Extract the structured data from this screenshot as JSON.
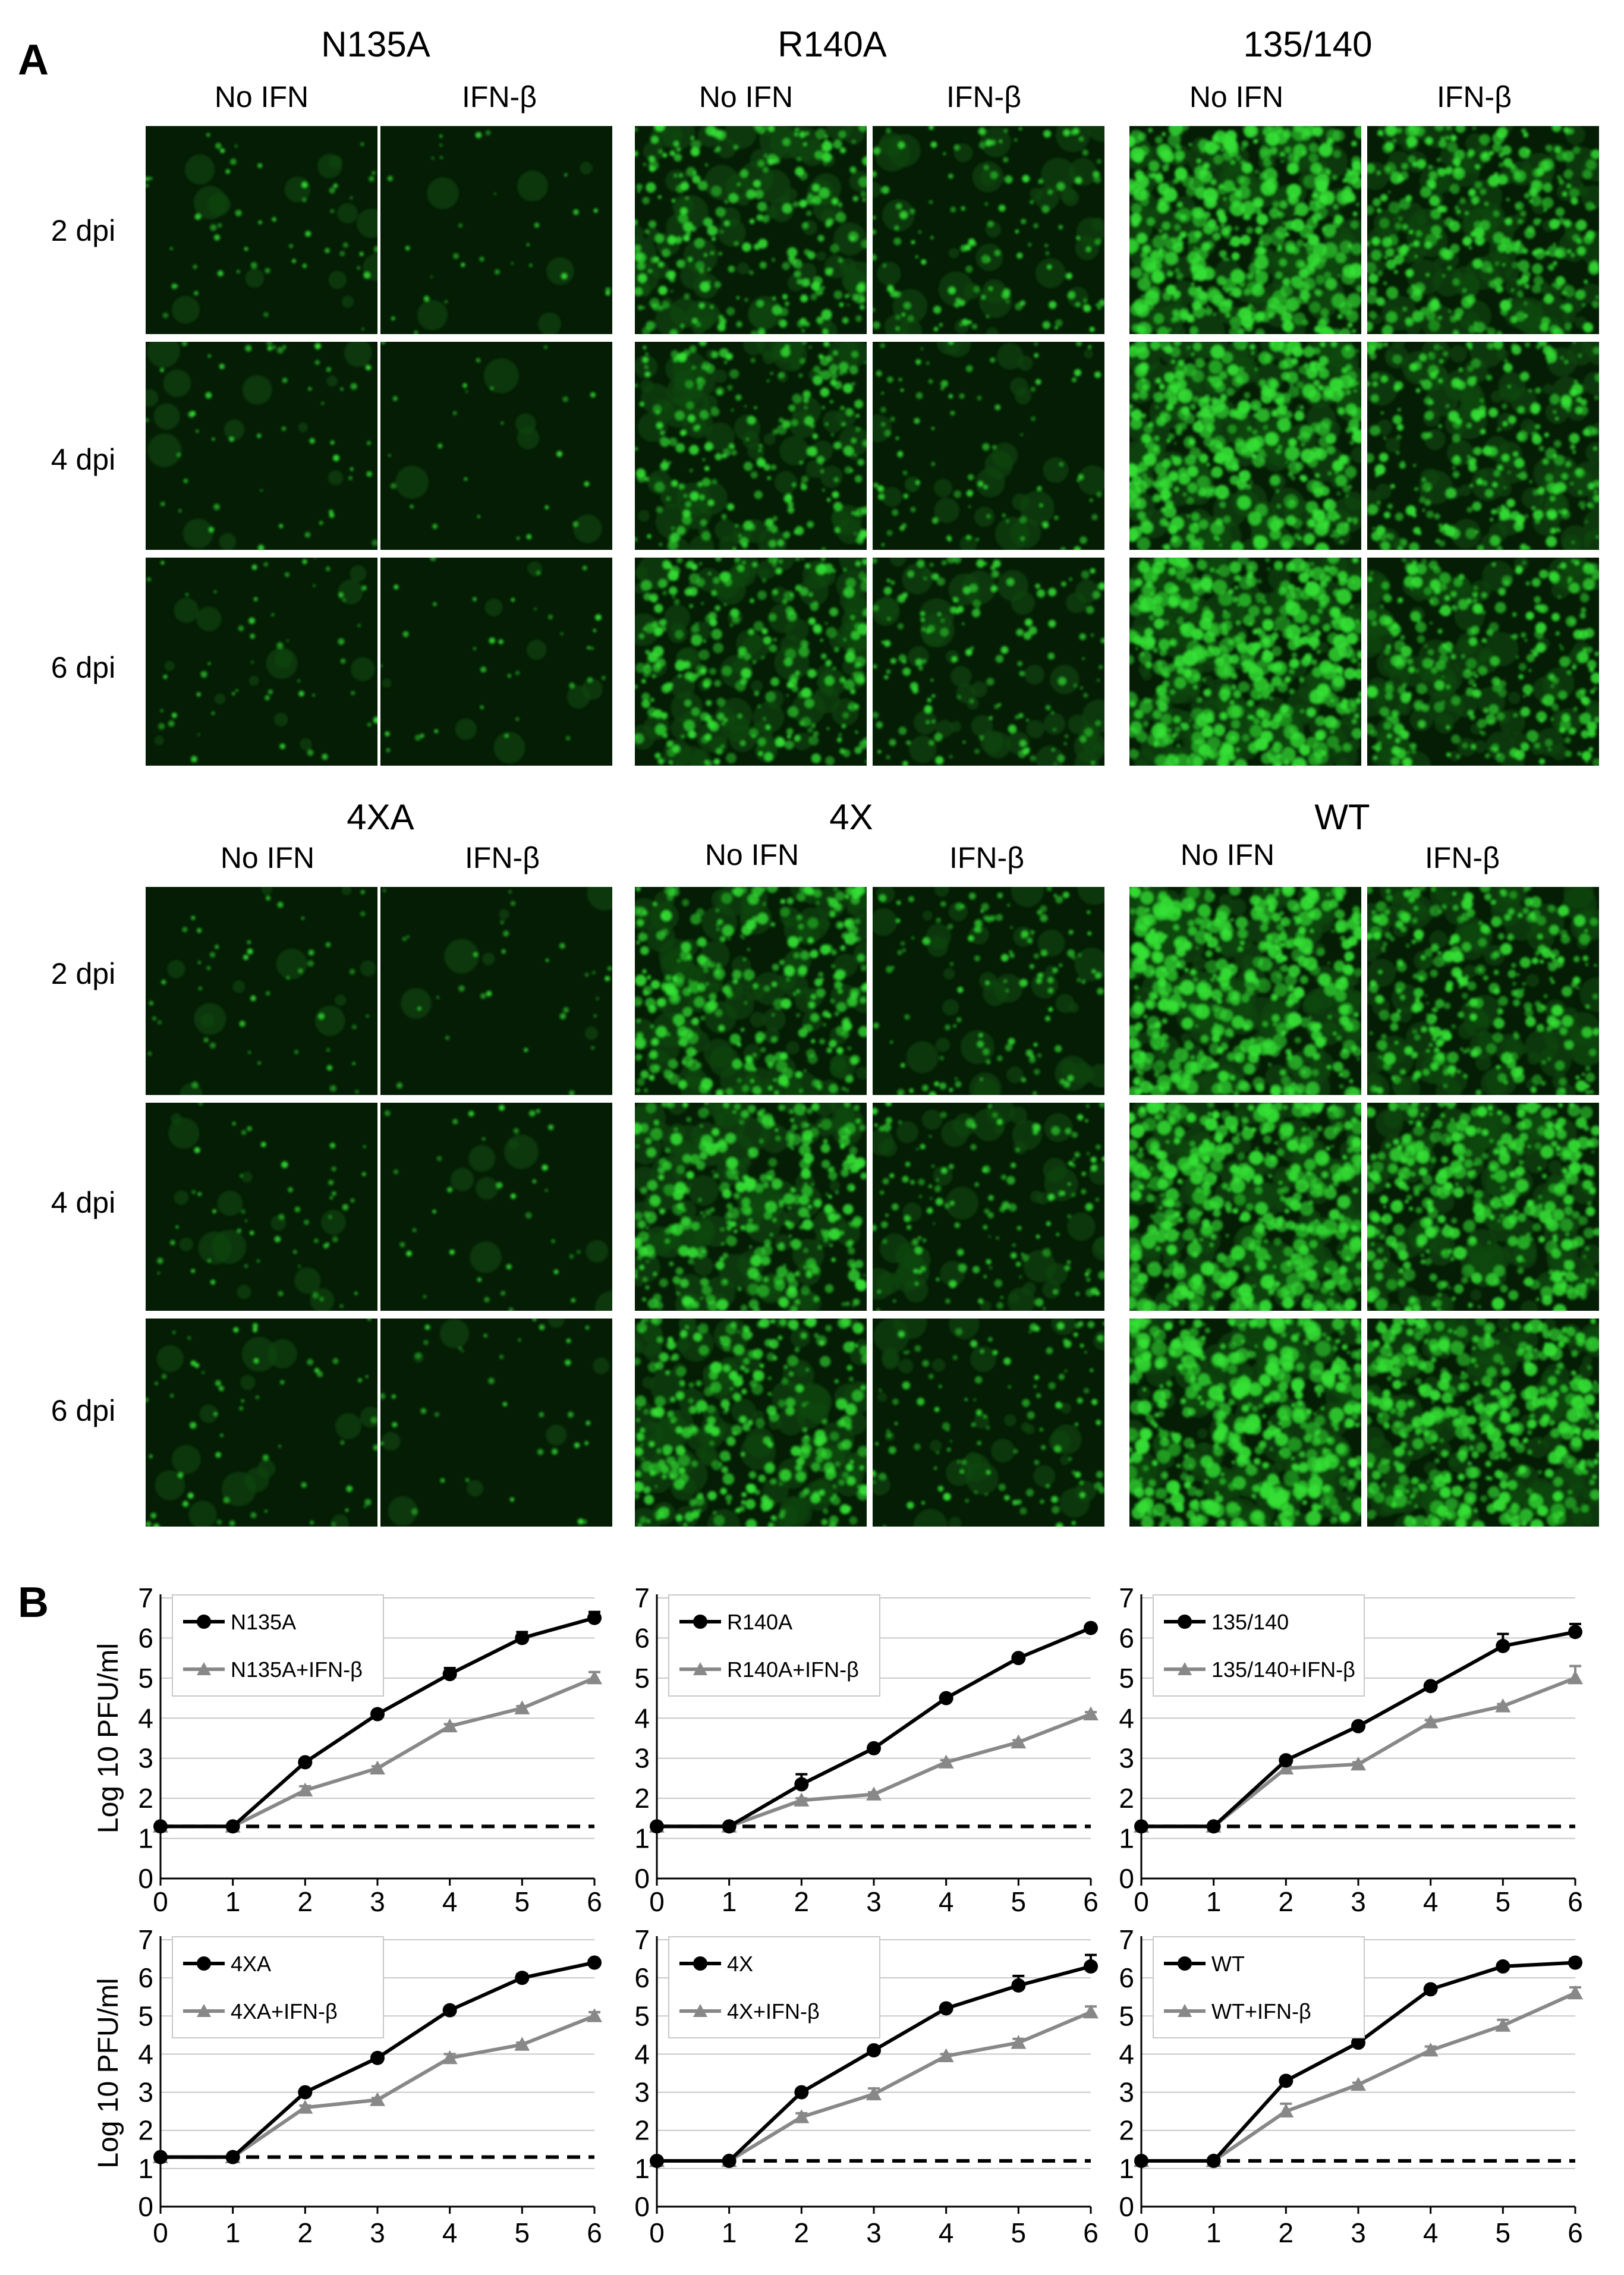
{
  "panel_a": {
    "label": "A",
    "groups": [
      {
        "name": "N135A",
        "cond_left": "No IFN",
        "cond_right": "IFN-β"
      },
      {
        "name": "R140A",
        "cond_left": "No IFN",
        "cond_right": "IFN-β"
      },
      {
        "name": "135/140",
        "cond_left": "No IFN",
        "cond_right": "IFN-β"
      },
      {
        "name": "4XA",
        "cond_left": "No IFN",
        "cond_right": "IFN-β"
      },
      {
        "name": "4X",
        "cond_left": "No IFN",
        "cond_right": "IFN-β"
      },
      {
        "name": "WT",
        "cond_left": "No IFN",
        "cond_right": "IFN-β"
      }
    ],
    "time_rows": [
      "2 dpi",
      "4 dpi",
      "6 dpi"
    ],
    "colors": {
      "dark": "#041d04",
      "mid": "#0c4a0c",
      "bright": "#35e035"
    },
    "fluorescence_level": [
      [
        [
          0.08,
          0.04
        ],
        [
          0.08,
          0.03
        ],
        [
          0.08,
          0.05
        ]
      ],
      [
        [
          0.45,
          0.22
        ],
        [
          0.4,
          0.15
        ],
        [
          0.5,
          0.25
        ]
      ],
      [
        [
          0.85,
          0.6
        ],
        [
          0.8,
          0.5
        ],
        [
          0.9,
          0.55
        ]
      ],
      [
        [
          0.07,
          0.04
        ],
        [
          0.08,
          0.05
        ],
        [
          0.09,
          0.05
        ]
      ],
      [
        [
          0.55,
          0.2
        ],
        [
          0.6,
          0.25
        ],
        [
          0.55,
          0.2
        ]
      ],
      [
        [
          0.85,
          0.55
        ],
        [
          0.85,
          0.7
        ],
        [
          0.9,
          0.8
        ]
      ]
    ]
  },
  "panel_b": {
    "label": "B"
  },
  "chart_data": [
    {
      "type": "line",
      "ylabel": "Log 10 PFU/ml",
      "x": [
        0,
        1,
        2,
        3,
        4,
        5,
        6
      ],
      "ylim": [
        0,
        7
      ],
      "yticks": [
        0,
        1,
        2,
        3,
        4,
        5,
        6,
        7
      ],
      "detection_limit": 1.3,
      "series": [
        {
          "name": "N135A",
          "color": "#000000",
          "marker": "circle",
          "values": [
            1.3,
            1.3,
            2.9,
            4.1,
            5.1,
            6.0,
            6.5
          ],
          "errors": [
            0,
            0,
            0.05,
            0.05,
            0.15,
            0.15,
            0.15
          ]
        },
        {
          "name": "N135A+IFN-β",
          "color": "#888888",
          "marker": "triangle",
          "values": [
            1.3,
            1.3,
            2.2,
            2.75,
            3.8,
            4.25,
            5.0
          ],
          "errors": [
            0,
            0,
            0.1,
            0.05,
            0.05,
            0.05,
            0.15
          ]
        }
      ]
    },
    {
      "type": "line",
      "ylabel": "",
      "x": [
        0,
        1,
        2,
        3,
        4,
        5,
        6
      ],
      "ylim": [
        0,
        7
      ],
      "yticks": [
        0,
        1,
        2,
        3,
        4,
        5,
        6,
        7
      ],
      "detection_limit": 1.3,
      "series": [
        {
          "name": "R140A",
          "color": "#000000",
          "marker": "circle",
          "values": [
            1.3,
            1.3,
            2.35,
            3.25,
            4.5,
            5.5,
            6.25
          ],
          "errors": [
            0,
            0,
            0.25,
            0.05,
            0.05,
            0.05,
            0.05
          ]
        },
        {
          "name": "R140A+IFN-β",
          "color": "#888888",
          "marker": "triangle",
          "values": [
            1.3,
            1.3,
            1.95,
            2.1,
            2.9,
            3.4,
            4.1
          ],
          "errors": [
            0,
            0,
            0.05,
            0.05,
            0.05,
            0.05,
            0.05
          ]
        }
      ]
    },
    {
      "type": "line",
      "ylabel": "",
      "x": [
        0,
        1,
        2,
        3,
        4,
        5,
        6
      ],
      "ylim": [
        0,
        7
      ],
      "yticks": [
        0,
        1,
        2,
        3,
        4,
        5,
        6,
        7
      ],
      "detection_limit": 1.3,
      "series": [
        {
          "name": "135/140",
          "color": "#000000",
          "marker": "circle",
          "values": [
            1.3,
            1.3,
            2.95,
            3.8,
            4.8,
            5.8,
            6.15
          ],
          "errors": [
            0,
            0,
            0.05,
            0.05,
            0.05,
            0.3,
            0.2
          ]
        },
        {
          "name": "135/140+IFN-β",
          "color": "#888888",
          "marker": "triangle",
          "values": [
            1.3,
            1.3,
            2.75,
            2.85,
            3.9,
            4.3,
            5.0
          ],
          "errors": [
            0,
            0,
            0.05,
            0.05,
            0.05,
            0.05,
            0.3
          ]
        }
      ]
    },
    {
      "type": "line",
      "ylabel": "Log 10 PFU/ml",
      "x": [
        0,
        1,
        2,
        3,
        4,
        5,
        6
      ],
      "ylim": [
        0,
        7
      ],
      "yticks": [
        0,
        1,
        2,
        3,
        4,
        5,
        6,
        7
      ],
      "detection_limit": 1.3,
      "series": [
        {
          "name": "4XA",
          "color": "#000000",
          "marker": "circle",
          "values": [
            1.3,
            1.3,
            3.0,
            3.9,
            5.15,
            6.0,
            6.4
          ],
          "errors": [
            0,
            0,
            0.05,
            0.05,
            0.05,
            0.1,
            0.05
          ]
        },
        {
          "name": "4XA+IFN-β",
          "color": "#888888",
          "marker": "triangle",
          "values": [
            1.3,
            1.3,
            2.6,
            2.8,
            3.9,
            4.25,
            5.0
          ],
          "errors": [
            0,
            0,
            0.05,
            0.05,
            0.1,
            0.05,
            0.1
          ]
        }
      ]
    },
    {
      "type": "line",
      "ylabel": "",
      "x": [
        0,
        1,
        2,
        3,
        4,
        5,
        6
      ],
      "ylim": [
        0,
        7
      ],
      "yticks": [
        0,
        1,
        2,
        3,
        4,
        5,
        6,
        7
      ],
      "detection_limit": 1.2,
      "series": [
        {
          "name": "4X",
          "color": "#000000",
          "marker": "circle",
          "values": [
            1.2,
            1.2,
            3.0,
            4.1,
            5.2,
            5.8,
            6.3
          ],
          "errors": [
            0,
            0,
            0.05,
            0.05,
            0.05,
            0.25,
            0.3
          ]
        },
        {
          "name": "4X+IFN-β",
          "color": "#888888",
          "marker": "triangle",
          "values": [
            1.2,
            1.2,
            2.35,
            2.95,
            3.95,
            4.3,
            5.1
          ],
          "errors": [
            0,
            0,
            0.1,
            0.15,
            0.05,
            0.1,
            0.15
          ]
        }
      ]
    },
    {
      "type": "line",
      "ylabel": "",
      "x": [
        0,
        1,
        2,
        3,
        4,
        5,
        6
      ],
      "ylim": [
        0,
        7
      ],
      "yticks": [
        0,
        1,
        2,
        3,
        4,
        5,
        6,
        7
      ],
      "detection_limit": 1.2,
      "series": [
        {
          "name": "WT",
          "color": "#000000",
          "marker": "circle",
          "values": [
            1.2,
            1.2,
            3.3,
            4.3,
            5.7,
            6.3,
            6.4
          ],
          "errors": [
            0,
            0,
            0.05,
            0.05,
            0.05,
            0.05,
            0.1
          ]
        },
        {
          "name": "WT+IFN-β",
          "color": "#888888",
          "marker": "triangle",
          "values": [
            1.2,
            1.2,
            2.5,
            3.2,
            4.1,
            4.75,
            5.6
          ],
          "errors": [
            0,
            0,
            0.2,
            0.05,
            0.1,
            0.15,
            0.15
          ]
        }
      ]
    }
  ]
}
